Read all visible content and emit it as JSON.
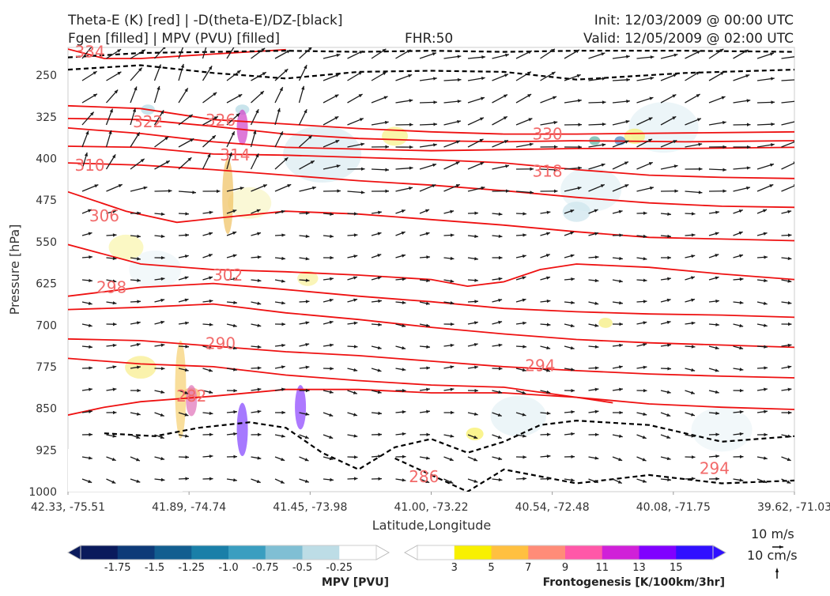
{
  "header": {
    "title_left_1": "Theta-E (K) [red] | -D(theta-E)/DZ-[black]",
    "title_left_2": "Fgen [filled] | MPV (PVU) [filled]",
    "title_center": "FHR:50",
    "title_right_1": "Init: 12/03/2009 @ 00:00 UTC",
    "title_right_2": "Valid: 12/05/2009 @ 02:00 UTC"
  },
  "chart_data": {
    "type": "cross-section",
    "xlabel": "Latitude,Longitude",
    "ylabel": "Pressure [hPa]",
    "x_ticks": [
      "42.33, -75.51",
      "41.89, -74.74",
      "41.45, -73.98",
      "41.00, -73.22",
      "40.54, -72.48",
      "40.08, -71.75",
      "39.62, -71.03"
    ],
    "y_ticks": [
      "250",
      "325",
      "400",
      "475",
      "550",
      "625",
      "700",
      "775",
      "850",
      "925",
      "1000"
    ],
    "y_values": [
      250,
      325,
      400,
      475,
      550,
      625,
      700,
      775,
      850,
      925,
      1000
    ],
    "ylim": [
      1000,
      200
    ],
    "theta_e_labels": [
      {
        "text": "334",
        "x": 0.03,
        "p": 210
      },
      {
        "text": "322",
        "x": 0.11,
        "p": 336
      },
      {
        "text": "326",
        "x": 0.21,
        "p": 333
      },
      {
        "text": "314",
        "x": 0.23,
        "p": 396
      },
      {
        "text": "310",
        "x": 0.03,
        "p": 414
      },
      {
        "text": "306",
        "x": 0.05,
        "p": 505
      },
      {
        "text": "330",
        "x": 0.66,
        "p": 358
      },
      {
        "text": "318",
        "x": 0.66,
        "p": 425
      },
      {
        "text": "302",
        "x": 0.22,
        "p": 612
      },
      {
        "text": "298",
        "x": 0.06,
        "p": 634
      },
      {
        "text": "290",
        "x": 0.21,
        "p": 735
      },
      {
        "text": "294",
        "x": 0.65,
        "p": 775
      },
      {
        "text": "282",
        "x": 0.17,
        "p": 830
      },
      {
        "text": "286",
        "x": 0.49,
        "p": 975
      },
      {
        "text": "294",
        "x": 0.89,
        "p": 960
      }
    ],
    "theta_e_lines": [
      {
        "level": 334,
        "points": [
          [
            0,
            203
          ],
          [
            0.05,
            220
          ],
          [
            0.1,
            220
          ],
          [
            0.2,
            212
          ],
          [
            0.3,
            204
          ]
        ]
      },
      {
        "level": 326,
        "points": [
          [
            0,
            305
          ],
          [
            0.1,
            310
          ],
          [
            0.2,
            330
          ],
          [
            0.3,
            338
          ],
          [
            0.4,
            346
          ],
          [
            0.5,
            352
          ],
          [
            0.6,
            356
          ],
          [
            0.7,
            356
          ],
          [
            0.85,
            354
          ],
          [
            1,
            352
          ]
        ]
      },
      {
        "level": 322,
        "points": [
          [
            0,
            328
          ],
          [
            0.1,
            330
          ],
          [
            0.2,
            342
          ],
          [
            0.3,
            356
          ],
          [
            0.4,
            364
          ],
          [
            0.5,
            368
          ],
          [
            0.6,
            370
          ],
          [
            0.7,
            368
          ],
          [
            0.85,
            370
          ],
          [
            1,
            368
          ]
        ]
      },
      {
        "level": 318,
        "points": [
          [
            0,
            345
          ],
          [
            0.1,
            355
          ],
          [
            0.2,
            370
          ],
          [
            0.3,
            380
          ],
          [
            0.4,
            383
          ],
          [
            0.5,
            386
          ],
          [
            0.6,
            384
          ],
          [
            0.7,
            382
          ],
          [
            0.85,
            382
          ],
          [
            1,
            380
          ]
        ]
      },
      {
        "level": 314,
        "points": [
          [
            0,
            378
          ],
          [
            0.1,
            380
          ],
          [
            0.2,
            392
          ],
          [
            0.3,
            394
          ],
          [
            0.4,
            398
          ],
          [
            0.5,
            402
          ],
          [
            0.6,
            408
          ],
          [
            0.7,
            420
          ],
          [
            0.8,
            430
          ],
          [
            0.9,
            434
          ],
          [
            1,
            436
          ]
        ]
      },
      {
        "level": 310,
        "points": [
          [
            0,
            408
          ],
          [
            0.1,
            412
          ],
          [
            0.2,
            420
          ],
          [
            0.3,
            430
          ],
          [
            0.4,
            440
          ],
          [
            0.5,
            448
          ],
          [
            0.6,
            458
          ],
          [
            0.7,
            470
          ],
          [
            0.8,
            480
          ],
          [
            0.9,
            486
          ],
          [
            1,
            488
          ]
        ]
      },
      {
        "level": 306,
        "points": [
          [
            0,
            460
          ],
          [
            0.08,
            495
          ],
          [
            0.15,
            515
          ],
          [
            0.2,
            508
          ],
          [
            0.3,
            495
          ],
          [
            0.4,
            500
          ],
          [
            0.5,
            510
          ],
          [
            0.6,
            520
          ],
          [
            0.7,
            532
          ],
          [
            0.8,
            542
          ],
          [
            0.9,
            545
          ],
          [
            1,
            548
          ]
        ]
      },
      {
        "level": 302,
        "points": [
          [
            0,
            555
          ],
          [
            0.1,
            590
          ],
          [
            0.2,
            600
          ],
          [
            0.3,
            604
          ],
          [
            0.4,
            610
          ],
          [
            0.5,
            618
          ],
          [
            0.55,
            630
          ],
          [
            0.6,
            622
          ],
          [
            0.65,
            600
          ],
          [
            0.7,
            590
          ],
          [
            0.8,
            596
          ],
          [
            0.9,
            608
          ],
          [
            1,
            618
          ]
        ]
      },
      {
        "level": 298,
        "points": [
          [
            0,
            648
          ],
          [
            0.1,
            632
          ],
          [
            0.2,
            625
          ],
          [
            0.3,
            636
          ],
          [
            0.4,
            648
          ],
          [
            0.5,
            658
          ],
          [
            0.6,
            670
          ],
          [
            0.7,
            676
          ],
          [
            0.8,
            680
          ],
          [
            0.9,
            682
          ],
          [
            1,
            686
          ]
        ]
      },
      {
        "level": 294,
        "points": [
          [
            0,
            672
          ],
          [
            0.1,
            668
          ],
          [
            0.2,
            662
          ],
          [
            0.3,
            678
          ],
          [
            0.4,
            690
          ],
          [
            0.5,
            704
          ],
          [
            0.6,
            716
          ],
          [
            0.7,
            726
          ],
          [
            0.8,
            732
          ],
          [
            0.9,
            736
          ],
          [
            1,
            740
          ]
        ]
      },
      {
        "level": 290,
        "points": [
          [
            0,
            725
          ],
          [
            0.1,
            728
          ],
          [
            0.2,
            738
          ],
          [
            0.3,
            748
          ],
          [
            0.4,
            755
          ],
          [
            0.5,
            765
          ],
          [
            0.6,
            775
          ],
          [
            0.7,
            782
          ],
          [
            0.8,
            788
          ],
          [
            0.9,
            792
          ],
          [
            1,
            795
          ]
        ]
      },
      {
        "level": 286,
        "points": [
          [
            0,
            760
          ],
          [
            0.1,
            770
          ],
          [
            0.2,
            775
          ],
          [
            0.3,
            790
          ],
          [
            0.4,
            800
          ],
          [
            0.5,
            808
          ],
          [
            0.6,
            812
          ],
          [
            0.7,
            830
          ],
          [
            0.8,
            842
          ],
          [
            0.9,
            848
          ],
          [
            1,
            852
          ]
        ]
      },
      {
        "level": 282,
        "points": [
          [
            0,
            862
          ],
          [
            0.05,
            848
          ],
          [
            0.1,
            838
          ],
          [
            0.2,
            828
          ],
          [
            0.3,
            816
          ],
          [
            0.4,
            816
          ],
          [
            0.5,
            822
          ],
          [
            0.6,
            822
          ],
          [
            0.7,
            830
          ],
          [
            0.75,
            840
          ]
        ]
      }
    ],
    "mpv_colorbar": {
      "title": "MPV [PVU]",
      "ticks": [
        "-1.75",
        "-1.5",
        "-1.25",
        "-1.0",
        "-0.75",
        "-0.5",
        "-0.25"
      ],
      "colors": [
        "#0a1a5c",
        "#0d3a78",
        "#125e90",
        "#1a7fa8",
        "#3a9ec0",
        "#80bfd4",
        "#bddde6",
        "#ffffff"
      ]
    },
    "fgen_colorbar": {
      "title": "Frontogenesis [K/100km/3hr]",
      "ticks": [
        "3",
        "5",
        "7",
        "9",
        "11",
        "13",
        "15"
      ],
      "colors": [
        "#ffffff",
        "#f8f000",
        "#ffc040",
        "#ff8c78",
        "#ff58a8",
        "#d020d8",
        "#8000ff",
        "#3010ff"
      ]
    }
  },
  "vector_scale": {
    "horizontal": "10 m/s",
    "vertical": "10 cm/s"
  }
}
